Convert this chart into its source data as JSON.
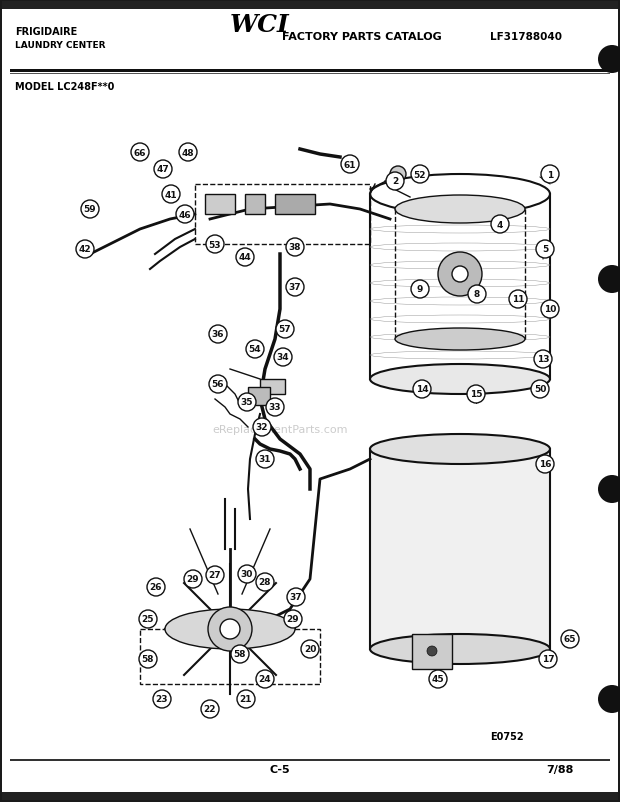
{
  "title": "FRIGIDAIRE\nLAUNDRY CENTER",
  "catalog": "FACTORY PARTS CATALOG",
  "model": "MODEL LC248F**0",
  "part_number": "LF31788040",
  "diagram_code": "E0752",
  "page": "C-5",
  "date": "7/88",
  "bg_color": "#ffffff",
  "border_color": "#000000",
  "text_color": "#000000",
  "diagram_color": "#111111"
}
